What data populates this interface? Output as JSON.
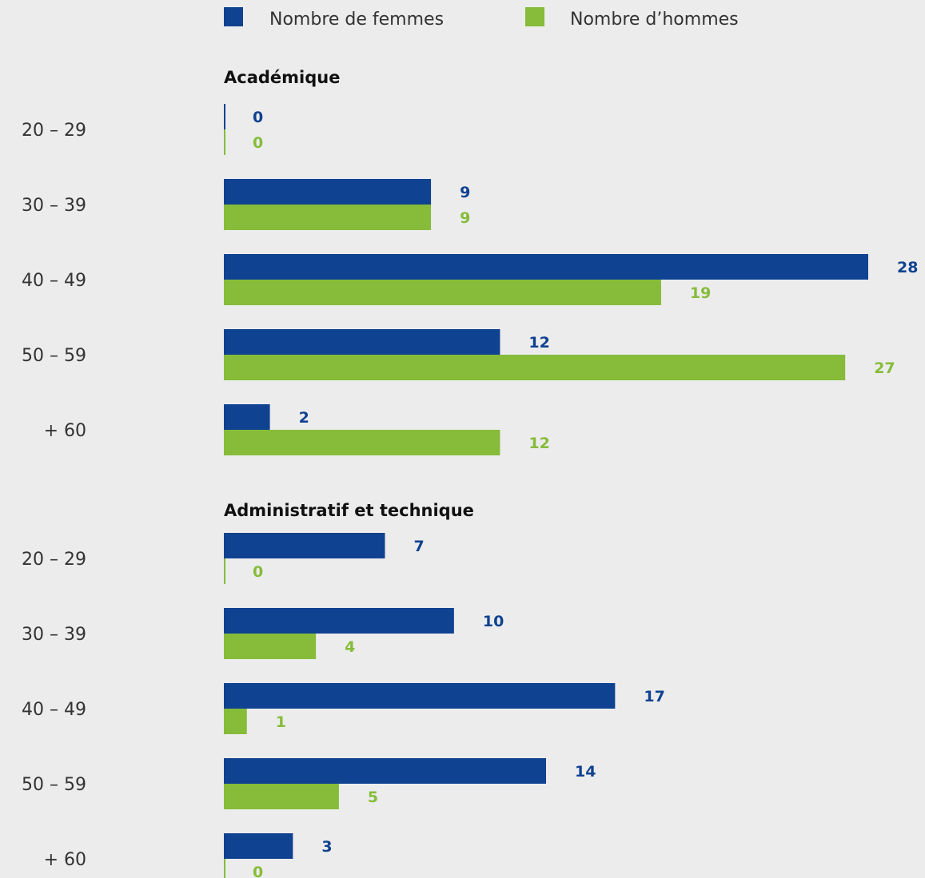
{
  "legend": [
    {
      "label": "Nombre de femmes",
      "color": "#0f4291"
    },
    {
      "label": "Nombre d’hommes",
      "color": "#86bc3a"
    }
  ],
  "chart_data": [
    {
      "type": "bar",
      "orientation": "horizontal",
      "title": "Académique",
      "categories": [
        "20 – 29",
        "30 – 39",
        "40 – 49",
        "50 – 59",
        "+ 60"
      ],
      "series": [
        {
          "name": "Nombre de femmes",
          "color": "#0f4291",
          "values": [
            0,
            9,
            28,
            12,
            2
          ]
        },
        {
          "name": "Nombre d’hommes",
          "color": "#86bc3a",
          "values": [
            0,
            9,
            19,
            27,
            12
          ]
        }
      ],
      "xlim": [
        0,
        28
      ]
    },
    {
      "type": "bar",
      "orientation": "horizontal",
      "title": "Administratif et technique",
      "categories": [
        "20 – 29",
        "30 – 39",
        "40 – 49",
        "50 – 59",
        "+ 60"
      ],
      "series": [
        {
          "name": "Nombre de femmes",
          "color": "#0f4291",
          "values": [
            7,
            10,
            17,
            14,
            3
          ]
        },
        {
          "name": "Nombre d’hommes",
          "color": "#86bc3a",
          "values": [
            0,
            4,
            1,
            5,
            0
          ]
        }
      ],
      "xlim": [
        0,
        28
      ]
    }
  ]
}
